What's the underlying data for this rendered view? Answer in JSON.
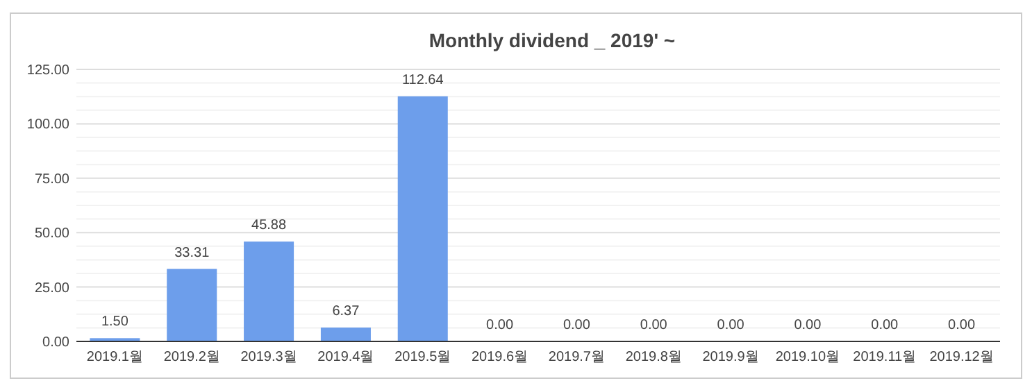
{
  "chart_data": {
    "type": "bar",
    "title": "Monthly dividend _ 2019' ~",
    "categories": [
      "2019.1월",
      "2019.2월",
      "2019.3월",
      "2019.4월",
      "2019.5월",
      "2019.6월",
      "2019.7월",
      "2019.8월",
      "2019.9월",
      "2019.10월",
      "2019.11월",
      "2019.12월"
    ],
    "values": [
      1.5,
      33.31,
      45.88,
      6.37,
      112.64,
      0,
      0,
      0,
      0,
      0,
      0,
      0
    ],
    "value_labels": [
      "1.50",
      "33.31",
      "45.88",
      "6.37",
      "112.64",
      "0.00",
      "0.00",
      "0.00",
      "0.00",
      "0.00",
      "0.00",
      "0.00"
    ],
    "color": "#6d9eeb",
    "ylim": [
      0,
      125
    ],
    "yticks": [
      {
        "value": 0,
        "label": "0.00"
      },
      {
        "value": 25,
        "label": "25.00"
      },
      {
        "value": 50,
        "label": "50.00"
      },
      {
        "value": 75,
        "label": "75.00"
      },
      {
        "value": 100,
        "label": "100.00"
      },
      {
        "value": 125,
        "label": "125.00"
      }
    ],
    "grid": "y"
  }
}
